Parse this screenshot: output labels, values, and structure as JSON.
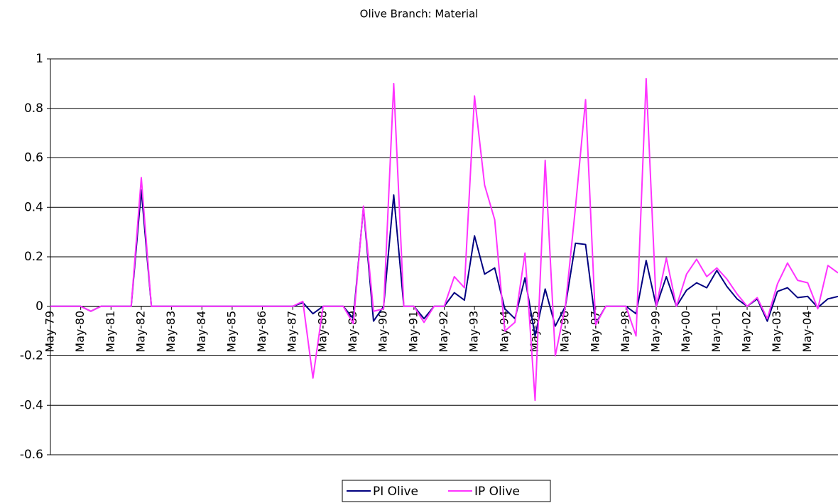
{
  "chart_data": {
    "type": "line",
    "title": "Olive Branch: Material",
    "categories": [
      "May-79",
      null,
      null,
      "May-80",
      null,
      null,
      "May-81",
      null,
      null,
      "May-82",
      null,
      null,
      "May-83",
      null,
      null,
      "May-84",
      null,
      null,
      "May-85",
      null,
      null,
      "May-86",
      null,
      null,
      "May-87",
      null,
      null,
      "May-88",
      null,
      null,
      "May-89",
      null,
      null,
      "May-90",
      null,
      null,
      "May-91",
      null,
      null,
      "May-92",
      null,
      null,
      "May-93",
      null,
      null,
      "May-94",
      null,
      null,
      "May-95",
      null,
      null,
      "May-96",
      null,
      null,
      "May-97",
      null,
      null,
      "May-98",
      null,
      null,
      "May-99",
      null,
      null,
      "May-00",
      null,
      null,
      "May-01",
      null,
      null,
      "May-02",
      null,
      null,
      "May-03",
      null,
      null,
      "May-04",
      null,
      null,
      null
    ],
    "series": [
      {
        "name": "PI Olive",
        "color": "#000080",
        "values": [
          0,
          0,
          0,
          0,
          -0.02,
          0,
          0,
          0,
          0,
          0.47,
          0,
          0,
          0,
          0,
          0,
          0,
          0,
          0,
          0,
          0,
          0,
          0,
          0,
          0,
          0,
          0.015,
          -0.03,
          0,
          0,
          0,
          -0.05,
          0.4,
          -0.06,
          0,
          0.45,
          0,
          0,
          -0.05,
          0,
          0,
          0.055,
          0.025,
          0.285,
          0.13,
          0.155,
          -0.01,
          -0.05,
          0.115,
          -0.12,
          0.07,
          -0.08,
          0,
          0.255,
          0.25,
          -0.07,
          0,
          0,
          0,
          -0.03,
          0.185,
          0,
          0.12,
          0,
          0.065,
          0.095,
          0.075,
          0.145,
          0.08,
          0.03,
          0,
          0.03,
          -0.06,
          0.06,
          0.075,
          0.035,
          0.04,
          -0.005,
          0.03,
          0.04
        ]
      },
      {
        "name": "IP Olive",
        "color": "#ff33ff",
        "values": [
          0,
          0,
          0,
          0,
          -0.02,
          0,
          0,
          0,
          0,
          0.52,
          0,
          0,
          0,
          0,
          0,
          0,
          0,
          0,
          0,
          0,
          0,
          0,
          0,
          0,
          0,
          0.02,
          -0.29,
          0,
          0,
          0,
          -0.07,
          0.405,
          -0.02,
          -0.01,
          0.9,
          0,
          0,
          -0.065,
          0,
          0,
          0.12,
          0.075,
          0.85,
          0.49,
          0.35,
          -0.1,
          -0.065,
          0.215,
          -0.38,
          0.59,
          -0.2,
          0,
          0.4,
          0.835,
          -0.075,
          0,
          0,
          0,
          -0.12,
          0.92,
          0,
          0.195,
          0,
          0.13,
          0.19,
          0.12,
          0.155,
          0.11,
          0.05,
          0,
          0.035,
          -0.05,
          0.09,
          0.175,
          0.105,
          0.095,
          -0.01,
          0.165,
          0.135
        ]
      }
    ],
    "ylim": [
      -0.6,
      1
    ],
    "yticks": [
      -0.6,
      -0.4,
      -0.2,
      0,
      0.2,
      0.4,
      0.6,
      0.8,
      1
    ],
    "grid": true,
    "legend": "bottom"
  }
}
